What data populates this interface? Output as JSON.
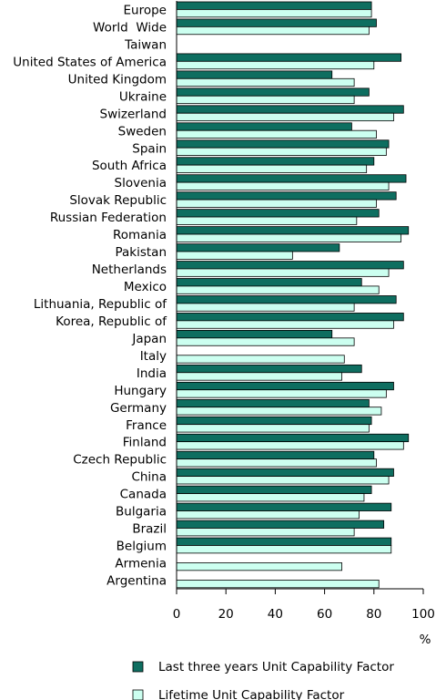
{
  "chart_data": {
    "type": "bar",
    "orientation": "horizontal",
    "categories": [
      "Europe",
      "World  Wide",
      "Taiwan",
      "United States of America",
      "United Kingdom",
      "Ukraine",
      "Swizerland",
      "Sweden",
      "Spain",
      "South Africa",
      "Slovenia",
      "Slovak Republic",
      "Russian Federation",
      "Romania",
      "Pakistan",
      "Netherlands",
      "Mexico",
      "Lithuania, Republic of",
      "Korea, Republic of",
      "Japan",
      "Italy",
      "India",
      "Hungary",
      "Germany",
      "France",
      "Finland",
      "Czech Republic",
      "China",
      "Canada",
      "Bulgaria",
      "Brazil",
      "Belgium",
      "Armenia",
      "Argentina"
    ],
    "series": [
      {
        "name": "Last three years Unit Capability Factor",
        "color": "#0e6e60",
        "values": [
          79,
          81,
          0,
          91,
          63,
          78,
          92,
          71,
          86,
          80,
          93,
          89,
          82,
          94,
          66,
          92,
          75,
          89,
          92,
          63,
          0,
          75,
          88,
          78,
          79,
          94,
          80,
          88,
          79,
          87,
          84,
          87,
          0,
          0
        ]
      },
      {
        "name": "Lifetime Unit Capability Factor",
        "color": "#ccfff0",
        "values": [
          79,
          78,
          0,
          80,
          72,
          72,
          88,
          81,
          85,
          77,
          86,
          81,
          73,
          91,
          47,
          86,
          82,
          72,
          88,
          72,
          68,
          67,
          85,
          83,
          78,
          92,
          81,
          86,
          76,
          74,
          72,
          87,
          67,
          82
        ]
      }
    ],
    "xlim": [
      0,
      100
    ],
    "xticks": [
      "0",
      "20",
      "40",
      "60",
      "80",
      "100"
    ],
    "unit": "%",
    "legend_position": "bottom"
  }
}
